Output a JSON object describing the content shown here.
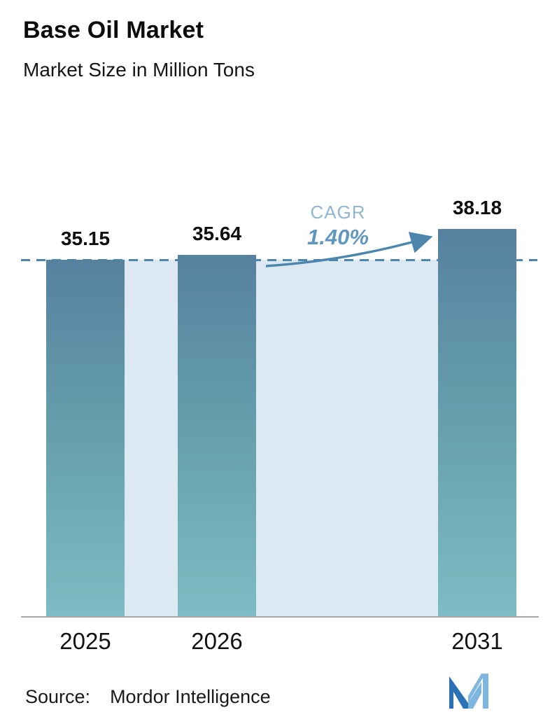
{
  "header": {
    "title": "Base Oil Market",
    "subtitle": "Market Size in Million Tons"
  },
  "chart_data": {
    "type": "bar",
    "title": "Base Oil Market",
    "subtitle": "Market Size in Million Tons",
    "units": "Million Tons",
    "categories": [
      "2025",
      "2026",
      "2031"
    ],
    "values": [
      35.15,
      35.64,
      38.18
    ],
    "value_labels": [
      "35.15",
      "35.64",
      "38.18"
    ],
    "annotations": {
      "cagr_label": "CAGR",
      "cagr_value": "1.40%",
      "reference_line_at_value": 35.15
    },
    "baseline": 0,
    "grid": false,
    "legend": false,
    "colors": {
      "bar_top": "#56819f",
      "bar_bottom": "#7dbcc4",
      "plot_fill": "#dde9f2",
      "dashed_line": "#4d86ad",
      "cagr_label": "#92b6cf",
      "cagr_value": "#5f97bd",
      "arrow": "#4d86ad"
    }
  },
  "footer": {
    "source_label": "Source:",
    "source_name": "Mordor Intelligence"
  }
}
